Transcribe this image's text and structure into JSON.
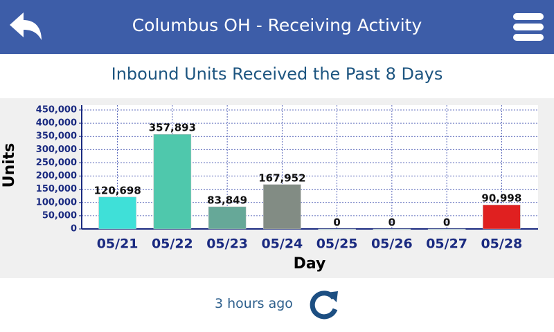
{
  "header": {
    "title": "Columbus OH - Receiving Activity"
  },
  "chart_data": {
    "type": "bar",
    "title": "Inbound Units Received the Past 8 Days",
    "x_label": "Day",
    "y_label": "Units",
    "categories": [
      "05/21",
      "05/22",
      "05/23",
      "05/24",
      "05/25",
      "05/26",
      "05/27",
      "05/28"
    ],
    "values": [
      120698,
      357893,
      83849,
      167952,
      0,
      0,
      0,
      90998
    ],
    "value_labels": [
      "120,698",
      "357,893",
      "83,849",
      "167,952",
      "0",
      "0",
      "0",
      "90,998"
    ],
    "colors": [
      "#3fe0d8",
      "#4fc8ac",
      "#66a898",
      "#828c84",
      "#a8d8e8",
      "#a8d8e8",
      "#a8d8e8",
      "#e02020"
    ],
    "ylim": [
      0,
      450000
    ],
    "yticks": [
      0,
      {
        "value": 50000,
        "label": "50,000"
      },
      {
        "value": 100000,
        "label": "100,000"
      },
      {
        "value": 150000,
        "label": "150,000"
      },
      {
        "value": 200000,
        "label": "200,000"
      },
      {
        "value": 250000,
        "label": "250,000"
      },
      {
        "value": 300000,
        "label": "300,000"
      },
      {
        "value": 350000,
        "label": "350,000"
      },
      {
        "value": 400000,
        "label": "400,000"
      },
      {
        "value": 450000,
        "label": "450,000"
      }
    ],
    "grid": true
  },
  "footer": {
    "updated": "3 hours ago"
  }
}
